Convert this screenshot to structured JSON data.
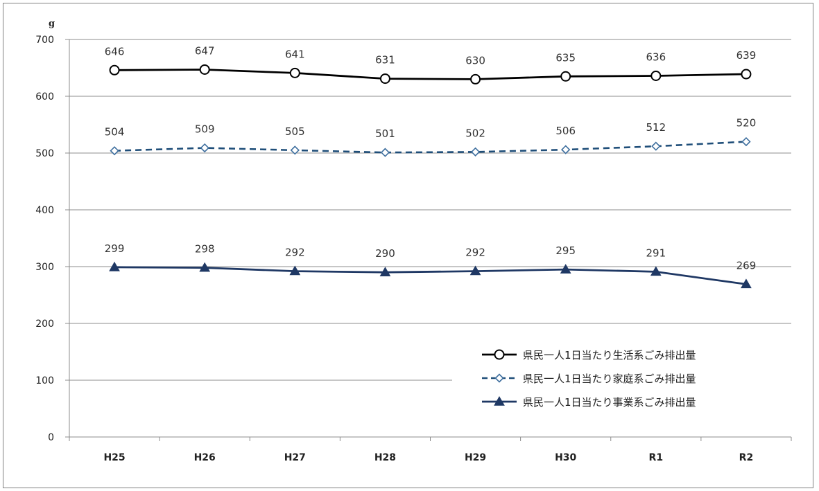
{
  "chart_data": {
    "type": "line",
    "ylabel": "g",
    "ylim": [
      0,
      700
    ],
    "yticks": [
      0,
      100,
      200,
      300,
      400,
      500,
      600,
      700
    ],
    "categories": [
      "H25",
      "H26",
      "H27",
      "H28",
      "H29",
      "H30",
      "R1",
      "R2"
    ],
    "legend_position": "bottom-right",
    "grid": true,
    "series": [
      {
        "name": "県民一人1日当たり生活系ごみ排出量",
        "values": [
          646,
          647,
          641,
          631,
          630,
          635,
          636,
          639
        ],
        "color": "#000000",
        "line_style": "solid",
        "marker": "circle-open"
      },
      {
        "name": "県民一人1日当たり家庭系ごみ排出量",
        "values": [
          504,
          509,
          505,
          501,
          502,
          506,
          512,
          520
        ],
        "color": "#1f4e79",
        "line_style": "dashed",
        "marker": "diamond-open"
      },
      {
        "name": "県民一人1日当たり事業系ごみ排出量",
        "values": [
          299,
          298,
          292,
          290,
          292,
          295,
          291,
          269
        ],
        "color": "#1f3864",
        "line_style": "solid",
        "marker": "triangle-filled"
      }
    ]
  }
}
